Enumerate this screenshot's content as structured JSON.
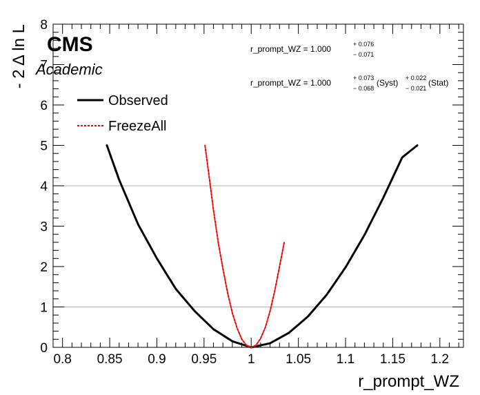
{
  "chart_data": {
    "type": "line",
    "xlabel": "r_prompt_WZ",
    "ylabel": "- 2 Δ ln L",
    "xlim": [
      0.79,
      1.225
    ],
    "ylim": [
      0,
      8
    ],
    "x_ticks": [
      "0.8",
      "0.85",
      "0.9",
      "0.95",
      "1",
      "1.05",
      "1.1",
      "1.15",
      "1.2"
    ],
    "x_tick_values": [
      0.8,
      0.85,
      0.9,
      0.95,
      1.0,
      1.05,
      1.1,
      1.15,
      1.2
    ],
    "y_ticks": [
      "0",
      "1",
      "2",
      "3",
      "4",
      "5",
      "6",
      "7",
      "8"
    ],
    "y_tick_values": [
      0,
      1,
      2,
      3,
      4,
      5,
      6,
      7,
      8
    ],
    "reference_lines": [
      1,
      4
    ],
    "series": [
      {
        "name": "Observed",
        "color": "#000000",
        "style": "solid",
        "x": [
          0.847,
          0.86,
          0.88,
          0.9,
          0.92,
          0.94,
          0.96,
          0.98,
          1.0,
          1.02,
          1.04,
          1.06,
          1.08,
          1.1,
          1.12,
          1.14,
          1.16,
          1.176
        ],
        "y": [
          5.0,
          4.15,
          3.05,
          2.2,
          1.45,
          0.9,
          0.45,
          0.15,
          0.0,
          0.1,
          0.36,
          0.76,
          1.3,
          1.98,
          2.78,
          3.7,
          4.7,
          5.0
        ]
      },
      {
        "name": "FreezeAll",
        "color": "#ff0000",
        "style": "dashed",
        "x": [
          0.951,
          0.955,
          0.96,
          0.965,
          0.97,
          0.975,
          0.98,
          0.985,
          0.99,
          0.995,
          1.0,
          1.005,
          1.01,
          1.015,
          1.02,
          1.025,
          1.03,
          1.035
        ],
        "y": [
          5.0,
          4.3,
          3.4,
          2.6,
          1.95,
          1.35,
          0.85,
          0.48,
          0.2,
          0.05,
          0.0,
          0.05,
          0.22,
          0.5,
          0.9,
          1.4,
          2.0,
          2.6
        ]
      }
    ],
    "legend_position": "top-left",
    "experiment_label": "CMS",
    "experiment_sublabel": "Academic",
    "results": [
      {
        "text": "r_prompt_WZ = 1.000",
        "up": "+ 0.076",
        "down": "− 0.071"
      },
      {
        "text": "r_prompt_WZ = 1.000",
        "syst_up": "+ 0.073",
        "syst_down": "− 0.068",
        "syst_label": "(Syst)",
        "stat_up": "+ 0.022",
        "stat_down": "− 0.021",
        "stat_label": "(Stat)"
      }
    ]
  }
}
